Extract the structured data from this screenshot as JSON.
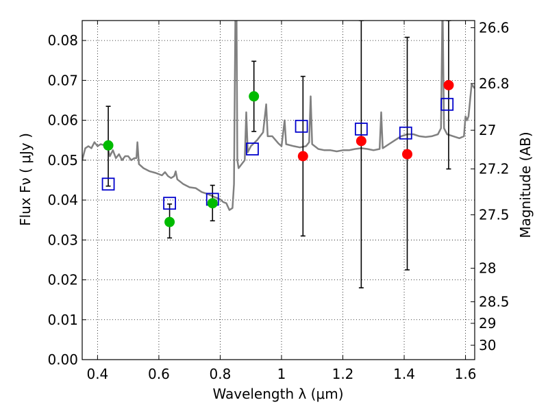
{
  "chart_data": {
    "type": "scatter",
    "xlabel": "Wavelength  λ (μm)",
    "ylabel": "Flux  Fν ( μJy )",
    "y2label": "Magnitude (AB)",
    "xlim": [
      0.35,
      1.63
    ],
    "ylim": [
      0.0,
      0.085
    ],
    "grid": true,
    "x_ticks": [
      0.4,
      0.6,
      0.8,
      1.0,
      1.2,
      1.4,
      1.6
    ],
    "x_tick_labels": [
      "0.4",
      "0.6",
      "0.8",
      "1",
      "1.2",
      "1.4",
      "1.6"
    ],
    "y_ticks": [
      0.0,
      0.01,
      0.02,
      0.03,
      0.04,
      0.05,
      0.06,
      0.07,
      0.08
    ],
    "y_tick_labels": [
      "0.00",
      "0.01",
      "0.02",
      "0.03",
      "0.04",
      "0.05",
      "0.06",
      "0.07",
      "0.08"
    ],
    "y2_ticks": [
      {
        "label": "26.6",
        "flux": 0.0832
      },
      {
        "label": "26.8",
        "flux": 0.0692
      },
      {
        "label": "27",
        "flux": 0.0575
      },
      {
        "label": "27.2",
        "flux": 0.0478
      },
      {
        "label": "27.5",
        "flux": 0.0363
      },
      {
        "label": "28",
        "flux": 0.0229
      },
      {
        "label": "28.5",
        "flux": 0.0145
      },
      {
        "label": "29",
        "flux": 0.0091
      },
      {
        "label": "30",
        "flux": 0.0036
      }
    ],
    "colors": {
      "sed": "#808080",
      "detected": "#00bb00",
      "upper": "#ff0000",
      "model": "#0000cc",
      "errorbar": "#000000"
    },
    "sed_model": [
      [
        0.35,
        0.05
      ],
      [
        0.36,
        0.053
      ],
      [
        0.37,
        0.0535
      ],
      [
        0.38,
        0.053
      ],
      [
        0.39,
        0.0545
      ],
      [
        0.4,
        0.0535
      ],
      [
        0.41,
        0.054
      ],
      [
        0.42,
        0.0538
      ],
      [
        0.43,
        0.0542
      ],
      [
        0.44,
        0.051
      ],
      [
        0.45,
        0.0525
      ],
      [
        0.46,
        0.0505
      ],
      [
        0.47,
        0.0515
      ],
      [
        0.48,
        0.05
      ],
      [
        0.49,
        0.051
      ],
      [
        0.5,
        0.051
      ],
      [
        0.51,
        0.05
      ],
      [
        0.52,
        0.0505
      ],
      [
        0.527,
        0.0505
      ],
      [
        0.53,
        0.0545
      ],
      [
        0.535,
        0.049
      ],
      [
        0.55,
        0.048
      ],
      [
        0.57,
        0.0472
      ],
      [
        0.59,
        0.0468
      ],
      [
        0.61,
        0.0462
      ],
      [
        0.62,
        0.047
      ],
      [
        0.63,
        0.046
      ],
      [
        0.64,
        0.0455
      ],
      [
        0.65,
        0.046
      ],
      [
        0.655,
        0.0472
      ],
      [
        0.66,
        0.0452
      ],
      [
        0.68,
        0.044
      ],
      [
        0.7,
        0.0432
      ],
      [
        0.72,
        0.043
      ],
      [
        0.74,
        0.042
      ],
      [
        0.76,
        0.0415
      ],
      [
        0.78,
        0.0408
      ],
      [
        0.8,
        0.0402
      ],
      [
        0.81,
        0.0395
      ],
      [
        0.82,
        0.0392
      ],
      [
        0.83,
        0.0375
      ],
      [
        0.84,
        0.038
      ],
      [
        0.845,
        0.044
      ],
      [
        0.85,
        0.09
      ],
      [
        0.853,
        0.09
      ],
      [
        0.856,
        0.05
      ],
      [
        0.86,
        0.048
      ],
      [
        0.88,
        0.05
      ],
      [
        0.885,
        0.062
      ],
      [
        0.89,
        0.052
      ],
      [
        0.9,
        0.0535
      ],
      [
        0.92,
        0.055
      ],
      [
        0.94,
        0.057
      ],
      [
        0.95,
        0.064
      ],
      [
        0.955,
        0.056
      ],
      [
        0.97,
        0.056
      ],
      [
        0.99,
        0.0542
      ],
      [
        1.0,
        0.0535
      ],
      [
        1.01,
        0.06
      ],
      [
        1.015,
        0.054
      ],
      [
        1.04,
        0.0535
      ],
      [
        1.06,
        0.0532
      ],
      [
        1.08,
        0.0535
      ],
      [
        1.09,
        0.0545
      ],
      [
        1.095,
        0.066
      ],
      [
        1.1,
        0.054
      ],
      [
        1.12,
        0.0528
      ],
      [
        1.14,
        0.0525
      ],
      [
        1.16,
        0.0525
      ],
      [
        1.18,
        0.0522
      ],
      [
        1.2,
        0.0525
      ],
      [
        1.22,
        0.0525
      ],
      [
        1.24,
        0.0528
      ],
      [
        1.26,
        0.053
      ],
      [
        1.28,
        0.0528
      ],
      [
        1.3,
        0.0525
      ],
      [
        1.32,
        0.0528
      ],
      [
        1.325,
        0.062
      ],
      [
        1.33,
        0.053
      ],
      [
        1.35,
        0.054
      ],
      [
        1.37,
        0.055
      ],
      [
        1.39,
        0.056
      ],
      [
        1.41,
        0.0565
      ],
      [
        1.43,
        0.0565
      ],
      [
        1.45,
        0.056
      ],
      [
        1.47,
        0.0558
      ],
      [
        1.49,
        0.056
      ],
      [
        1.51,
        0.0565
      ],
      [
        1.52,
        0.058
      ],
      [
        1.525,
        0.09
      ],
      [
        1.53,
        0.058
      ],
      [
        1.54,
        0.0565
      ],
      [
        1.56,
        0.056
      ],
      [
        1.58,
        0.0555
      ],
      [
        1.595,
        0.056
      ],
      [
        1.6,
        0.061
      ],
      [
        1.605,
        0.06
      ],
      [
        1.61,
        0.061
      ],
      [
        1.62,
        0.069
      ],
      [
        1.63,
        0.068
      ]
    ],
    "detected_points": [
      {
        "x": 0.435,
        "y": 0.0537
      },
      {
        "x": 0.635,
        "y": 0.0345
      },
      {
        "x": 0.775,
        "y": 0.0392
      },
      {
        "x": 0.91,
        "y": 0.066
      }
    ],
    "upper_limit_points": [
      {
        "x": 1.07,
        "y": 0.051
      },
      {
        "x": 1.26,
        "y": 0.0548
      },
      {
        "x": 1.41,
        "y": 0.0515
      },
      {
        "x": 1.545,
        "y": 0.0688
      }
    ],
    "model_points": [
      {
        "x": 0.435,
        "y": 0.044
      },
      {
        "x": 0.635,
        "y": 0.0392
      },
      {
        "x": 0.775,
        "y": 0.0402
      },
      {
        "x": 0.905,
        "y": 0.0528
      },
      {
        "x": 1.065,
        "y": 0.0585
      },
      {
        "x": 1.26,
        "y": 0.0578
      },
      {
        "x": 1.405,
        "y": 0.0568
      },
      {
        "x": 1.54,
        "y": 0.064
      }
    ],
    "error_bars": [
      {
        "x": 0.435,
        "low": 0.0435,
        "high": 0.0635
      },
      {
        "x": 0.635,
        "low": 0.0305,
        "high": 0.039
      },
      {
        "x": 0.775,
        "low": 0.0348,
        "high": 0.0437
      },
      {
        "x": 0.91,
        "low": 0.0572,
        "high": 0.0748
      },
      {
        "x": 1.07,
        "low": 0.031,
        "high": 0.071
      },
      {
        "x": 1.26,
        "low": 0.018,
        "high": 0.085
      },
      {
        "x": 1.41,
        "low": 0.0225,
        "high": 0.0808
      },
      {
        "x": 1.545,
        "low": 0.0478,
        "high": 0.085
      }
    ]
  }
}
